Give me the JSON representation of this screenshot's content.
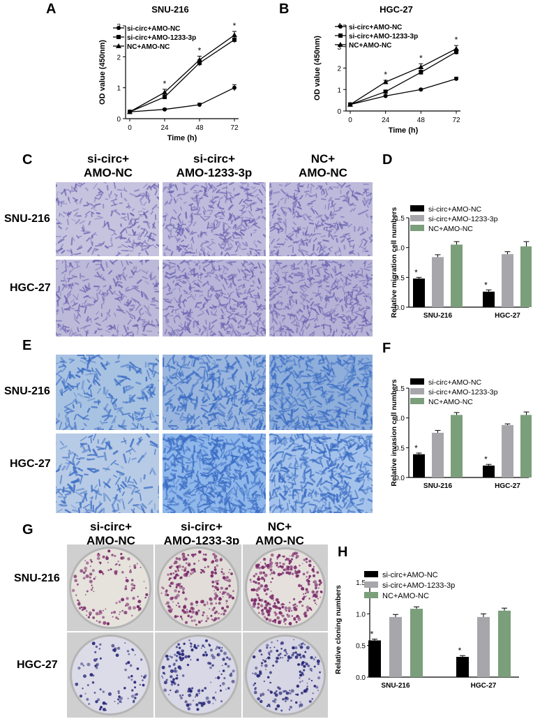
{
  "panels": {
    "A": {
      "letter": "A"
    },
    "B": {
      "letter": "B"
    },
    "C": {
      "letter": "C",
      "columns": [
        {
          "line1": "si-circ+",
          "line2": "AMO-NC"
        },
        {
          "line1": "si-circ+",
          "line2": "AMO-1233-3p"
        },
        {
          "line1": "NC+",
          "line2": "AMO-NC"
        }
      ],
      "rows": [
        "SNU-216",
        "HGC-27"
      ]
    },
    "D": {
      "letter": "D"
    },
    "E": {
      "letter": "E",
      "rows": [
        "SNU-216",
        "HGC-27"
      ]
    },
    "F": {
      "letter": "F"
    },
    "G": {
      "letter": "G",
      "columns": [
        {
          "line1": "si-circ+",
          "line2": "AMO-NC"
        },
        {
          "line1": "si-circ+",
          "line2": "AMO-1233-3p"
        },
        {
          "line1": "NC+",
          "line2": "AMO-NC"
        }
      ],
      "rows": [
        "SNU-216",
        "HGC-27"
      ]
    },
    "H": {
      "letter": "H"
    }
  },
  "colors": {
    "black": "#000000",
    "gray": "#a6a6ab",
    "green": "#7b9e7b",
    "migration_stain": "#6a64b0",
    "invasion_stain": "#3a6cc4",
    "colony_purple": "#7a2a6a",
    "colony_blue": "#2a2a7a"
  },
  "chart_data": [
    {
      "id": "A",
      "type": "line",
      "title": "SNU-216",
      "xlabel": "Time (h)",
      "ylabel": "OD value (450nm)",
      "x": [
        0,
        24,
        48,
        72
      ],
      "xlim": [
        0,
        72
      ],
      "ylim": [
        0,
        3
      ],
      "yticks": [
        0,
        1,
        2,
        3
      ],
      "series": [
        {
          "name": "si-circ+AMO-NC",
          "marker": "circle",
          "values": [
            0.22,
            0.3,
            0.45,
            1.0
          ],
          "err": [
            0.02,
            0.03,
            0.05,
            0.1
          ]
        },
        {
          "name": "si-circ+AMO-1233-3p",
          "marker": "square",
          "values": [
            0.22,
            0.7,
            1.8,
            2.55
          ],
          "err": [
            0.02,
            0.06,
            0.1,
            0.1
          ]
        },
        {
          "name": "NC+AMO-NC",
          "marker": "triangle",
          "values": [
            0.22,
            0.85,
            1.9,
            2.7
          ],
          "err": [
            0.02,
            0.1,
            0.12,
            0.12
          ]
        }
      ],
      "annotations": [
        "*",
        "*",
        "*"
      ]
    },
    {
      "id": "B",
      "type": "line",
      "title": "HGC-27",
      "xlabel": "Time (h)",
      "ylabel": "OD value (450nm)",
      "x": [
        0,
        24,
        48,
        72
      ],
      "xlim": [
        0,
        72
      ],
      "ylim": [
        0,
        4
      ],
      "yticks": [
        0,
        1,
        2,
        3,
        4
      ],
      "series": [
        {
          "name": "si-circ+AMO-NC",
          "marker": "circle",
          "values": [
            0.3,
            0.7,
            1.0,
            1.5
          ],
          "err": [
            0.02,
            0.04,
            0.04,
            0.08
          ]
        },
        {
          "name": "si-circ+AMO-1233-3p",
          "marker": "square",
          "values": [
            0.3,
            0.9,
            1.8,
            2.75
          ],
          "err": [
            0.02,
            0.05,
            0.1,
            0.12
          ]
        },
        {
          "name": "NC+AMO-NC",
          "marker": "triangle",
          "values": [
            0.3,
            1.35,
            2.05,
            2.9
          ],
          "err": [
            0.02,
            0.08,
            0.15,
            0.15
          ]
        }
      ],
      "annotations": [
        "*",
        "*",
        "*"
      ]
    },
    {
      "id": "D",
      "type": "bar",
      "ylabel": "Relative migration cell numbers",
      "categories": [
        "SNU-216",
        "HGC-27"
      ],
      "ylim": [
        0,
        1.5
      ],
      "yticks": [
        "0.0",
        "0.5",
        "1.0",
        "1.5"
      ],
      "series": [
        {
          "name": "si-circ+AMO-NC",
          "values": [
            0.48,
            0.26
          ],
          "err": [
            0.02,
            0.03
          ]
        },
        {
          "name": "si-circ+AMO-1233-3p",
          "values": [
            0.84,
            0.89
          ],
          "err": [
            0.04,
            0.04
          ]
        },
        {
          "name": "NC+AMO-NC",
          "values": [
            1.05,
            1.02
          ],
          "err": [
            0.05,
            0.08
          ]
        }
      ],
      "annotations": [
        "*",
        "*"
      ]
    },
    {
      "id": "F",
      "type": "bar",
      "ylabel": "Relative invasion cell numbers",
      "categories": [
        "SNU-216",
        "HGC-27"
      ],
      "ylim": [
        0,
        1.5
      ],
      "yticks": [
        "0.0",
        "0.5",
        "1.0",
        "1.5"
      ],
      "series": [
        {
          "name": "si-circ+AMO-NC",
          "values": [
            0.39,
            0.2
          ],
          "err": [
            0.02,
            0.02
          ]
        },
        {
          "name": "si-circ+AMO-1233-3p",
          "values": [
            0.75,
            0.88
          ],
          "err": [
            0.04,
            0.02
          ]
        },
        {
          "name": "NC+AMO-NC",
          "values": [
            1.05,
            1.05
          ],
          "err": [
            0.04,
            0.05
          ]
        }
      ],
      "annotations": [
        "*",
        "*"
      ]
    },
    {
      "id": "H",
      "type": "bar",
      "ylabel": "Relative cloning numbers",
      "categories": [
        "SNU-216",
        "HGC-27"
      ],
      "ylim": [
        0,
        1.5
      ],
      "yticks": [
        "0.0",
        "0.5",
        "1.0",
        "1.5"
      ],
      "series": [
        {
          "name": "si-circ+AMO-NC",
          "values": [
            0.58,
            0.32
          ],
          "err": [
            0.02,
            0.02
          ]
        },
        {
          "name": "si-circ+AMO-1233-3p",
          "values": [
            0.95,
            0.95
          ],
          "err": [
            0.04,
            0.05
          ]
        },
        {
          "name": "NC+AMO-NC",
          "values": [
            1.08,
            1.05
          ],
          "err": [
            0.03,
            0.04
          ]
        }
      ],
      "annotations": [
        "*",
        "*"
      ]
    }
  ]
}
